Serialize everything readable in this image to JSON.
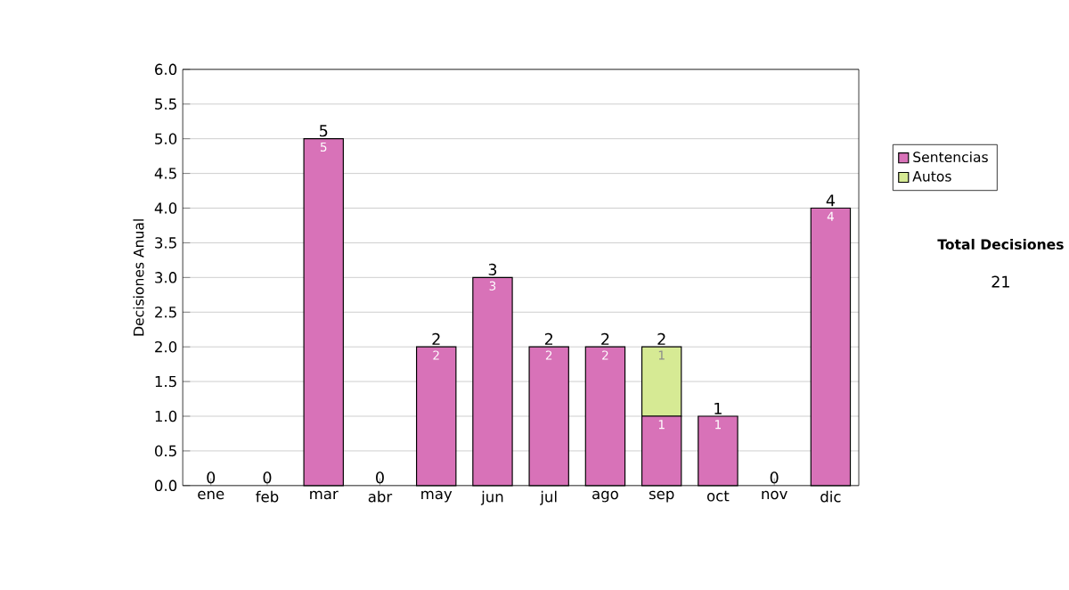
{
  "chart_data": {
    "type": "bar",
    "stacked": true,
    "categories": [
      "ene",
      "feb",
      "mar",
      "abr",
      "may",
      "jun",
      "jul",
      "ago",
      "sep",
      "oct",
      "nov",
      "dic"
    ],
    "series": [
      {
        "name": "Sentencias",
        "color": "#d872b8",
        "values": [
          0,
          0,
          5,
          0,
          2,
          3,
          2,
          2,
          1,
          1,
          0,
          4
        ],
        "value_labels": [
          null,
          null,
          "5",
          null,
          "2",
          "3",
          "2",
          "2",
          "1",
          "1",
          null,
          "4"
        ]
      },
      {
        "name": "Autos",
        "color": "#d6ea94",
        "values": [
          0,
          0,
          0,
          0,
          0,
          0,
          0,
          0,
          1,
          0,
          0,
          0
        ],
        "value_labels": [
          null,
          null,
          null,
          null,
          null,
          null,
          null,
          null,
          "1",
          null,
          null,
          null
        ]
      }
    ],
    "totals": [
      "0",
      "0",
      "5",
      "0",
      "2",
      "3",
      "2",
      "2",
      "2",
      "1",
      "0",
      "4"
    ],
    "ylabel": "Decisiones Anual",
    "ylim": [
      0,
      6
    ],
    "yticks": [
      {
        "value": 0,
        "label": "0.0"
      },
      {
        "value": 0.5,
        "label": "0.5"
      },
      {
        "value": 1,
        "label": "1.0"
      },
      {
        "value": 1.5,
        "label": "1.5"
      },
      {
        "value": 2,
        "label": "2.0"
      },
      {
        "value": 2.5,
        "label": "2.5"
      },
      {
        "value": 3,
        "label": "3.0"
      },
      {
        "value": 3.5,
        "label": "3.5"
      },
      {
        "value": 4,
        "label": "4.0"
      },
      {
        "value": 4.5,
        "label": "4.5"
      },
      {
        "value": 5,
        "label": "5.0"
      },
      {
        "value": 5.5,
        "label": "5.5"
      },
      {
        "value": 6,
        "label": "6.0"
      }
    ],
    "grid": "y",
    "legend": "right",
    "annotations": [
      "Total Decisiones",
      "21"
    ]
  }
}
